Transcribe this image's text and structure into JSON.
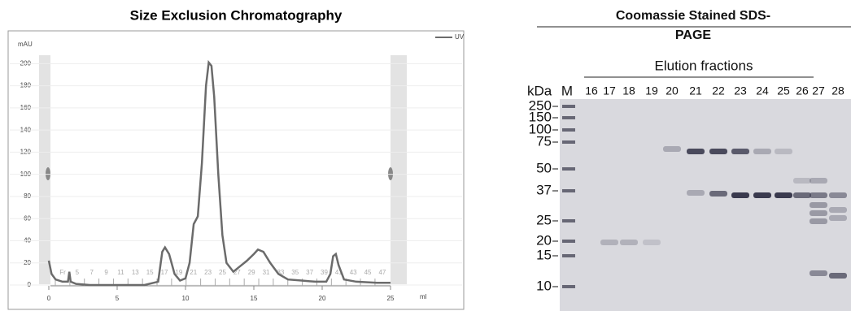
{
  "chart_data": {
    "type": "line",
    "title": "Size Exclusion Chromatography",
    "ylabel": "mAU",
    "xlabel": "ml",
    "series": [
      {
        "name": "UV",
        "color": "#6b6b6b",
        "x": [
          0,
          0.2,
          0.5,
          1,
          1.4,
          1.5,
          1.6,
          2,
          3,
          5,
          7,
          8,
          8.3,
          8.5,
          8.8,
          9.2,
          9.6,
          10,
          10.3,
          10.6,
          10.9,
          11.2,
          11.5,
          11.7,
          11.9,
          12.1,
          12.4,
          12.7,
          13,
          13.5,
          14,
          14.5,
          15,
          15.3,
          15.7,
          16.2,
          16.8,
          17.5,
          18.5,
          19.5,
          20.3,
          20.6,
          20.8,
          21,
          21.2,
          21.6,
          22.5,
          24,
          25
        ],
        "values": [
          22,
          10,
          5,
          3,
          3,
          12,
          3,
          1,
          0,
          0,
          0,
          3,
          30,
          34,
          28,
          10,
          4,
          6,
          20,
          55,
          62,
          110,
          180,
          201,
          198,
          170,
          100,
          45,
          20,
          12,
          17,
          22,
          28,
          32,
          30,
          20,
          10,
          5,
          4,
          3,
          3,
          10,
          26,
          28,
          18,
          5,
          3,
          2,
          2
        ]
      }
    ],
    "xlim": [
      -0.5,
      25.5
    ],
    "xticks": [
      0,
      5,
      10,
      15,
      20,
      25
    ],
    "ylim": [
      -22,
      212
    ],
    "yticks": [
      0,
      20,
      40,
      60,
      80,
      100,
      120,
      140,
      160,
      180,
      200
    ],
    "fraction_labels": [
      "Fr",
      "5",
      "7",
      "9",
      "11",
      "13",
      "15",
      "17",
      "19",
      "21",
      "23",
      "25",
      "27",
      "29",
      "31",
      "33",
      "35",
      "37",
      "39",
      "41",
      "43",
      "45",
      "47"
    ]
  },
  "gel": {
    "title": "Coomassie Stained SDS-PAGE",
    "subtitle": "Elution fractions",
    "unit_label": "kDa",
    "marker_lane": "M",
    "lanes": [
      "16",
      "17",
      "18",
      "19",
      "20",
      "21",
      "22",
      "23",
      "24",
      "25",
      "26",
      "27",
      "28"
    ],
    "marker_sizes": [
      250,
      150,
      100,
      75,
      50,
      37,
      25,
      20,
      15,
      10
    ]
  }
}
